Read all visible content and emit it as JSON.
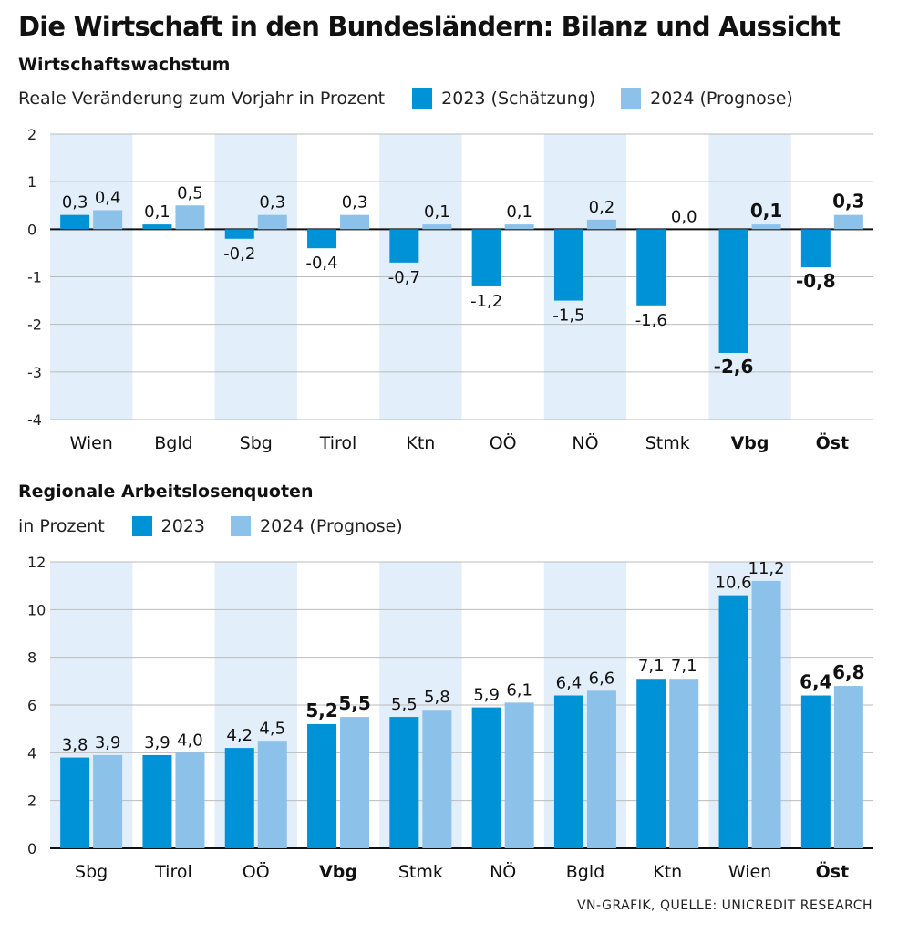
{
  "title": "Die Wirtschaft in den Bundesländern: Bilanz und Aussicht",
  "source": "VN-GRAFIK, QUELLE: UNICREDIT RESEARCH",
  "colors": {
    "series2023": "#0092d6",
    "series2024": "#8cc1ea",
    "band": "#e2eefa",
    "grid": "#bbbbbb",
    "zero": "#111111"
  },
  "chart_data": [
    {
      "type": "bar",
      "title": "Wirtschaftswachstum",
      "note": "Reale Veränderung zum Vorjahr in Prozent",
      "ylim": [
        -4,
        2
      ],
      "yticks": [
        2,
        1,
        0,
        -1,
        -2,
        -3,
        -4
      ],
      "ytick_labels": [
        "2",
        "1",
        "0",
        "-1",
        "-2",
        "-3",
        "-4"
      ],
      "categories": [
        "Wien",
        "Bgld",
        "Sbg",
        "Tirol",
        "Ktn",
        "OÖ",
        "NÖ",
        "Stmk",
        "Vbg",
        "Öst"
      ],
      "bold_categories": [
        "Vbg",
        "Öst"
      ],
      "shaded_categories": [
        "Wien",
        "Sbg",
        "Ktn",
        "NÖ",
        "Vbg"
      ],
      "series": [
        {
          "name": "2023 (Schätzung)",
          "values": [
            0.3,
            0.1,
            -0.2,
            -0.4,
            -0.7,
            -1.2,
            -1.5,
            -1.6,
            -2.6,
            -0.8
          ],
          "labels": [
            "0,3",
            "0,1",
            "-0,2",
            "-0,4",
            "-0,7",
            "-1,2",
            "-1,5",
            "-1,6",
            "-2,6",
            "-0,8"
          ]
        },
        {
          "name": "2024 (Prognose)",
          "values": [
            0.4,
            0.5,
            0.3,
            0.3,
            0.1,
            0.1,
            0.2,
            0.0,
            0.1,
            0.3
          ],
          "labels": [
            "0,4",
            "0,5",
            "0,3",
            "0,3",
            "0,1",
            "0,1",
            "0,2",
            "0,0",
            "0,1",
            "0,3"
          ]
        }
      ]
    },
    {
      "type": "bar",
      "title": "Regionale Arbeitslosenquoten",
      "note": "in Prozent",
      "ylim": [
        0,
        12
      ],
      "yticks": [
        12,
        10,
        8,
        6,
        4,
        2,
        0
      ],
      "ytick_labels": [
        "12",
        "10",
        "8",
        "6",
        "4",
        "2",
        "0"
      ],
      "categories": [
        "Sbg",
        "Tirol",
        "OÖ",
        "Vbg",
        "Stmk",
        "NÖ",
        "Bgld",
        "Ktn",
        "Wien",
        "Öst"
      ],
      "bold_categories": [
        "Vbg",
        "Öst"
      ],
      "shaded_categories": [
        "Sbg",
        "OÖ",
        "Stmk",
        "Bgld",
        "Wien"
      ],
      "series": [
        {
          "name": "2023",
          "values": [
            3.8,
            3.9,
            4.2,
            5.2,
            5.5,
            5.9,
            6.4,
            7.1,
            10.6,
            6.4
          ],
          "labels": [
            "3,8",
            "3,9",
            "4,2",
            "5,2",
            "5,5",
            "5,9",
            "6,4",
            "7,1",
            "10,6",
            "6,4"
          ]
        },
        {
          "name": "2024 (Prognose)",
          "values": [
            3.9,
            4.0,
            4.5,
            5.5,
            5.8,
            6.1,
            6.6,
            7.1,
            11.2,
            6.8
          ],
          "labels": [
            "3,9",
            "4,0",
            "4,5",
            "5,5",
            "5,8",
            "6,1",
            "6,6",
            "7,1",
            "11,2",
            "6,8"
          ]
        }
      ]
    }
  ]
}
